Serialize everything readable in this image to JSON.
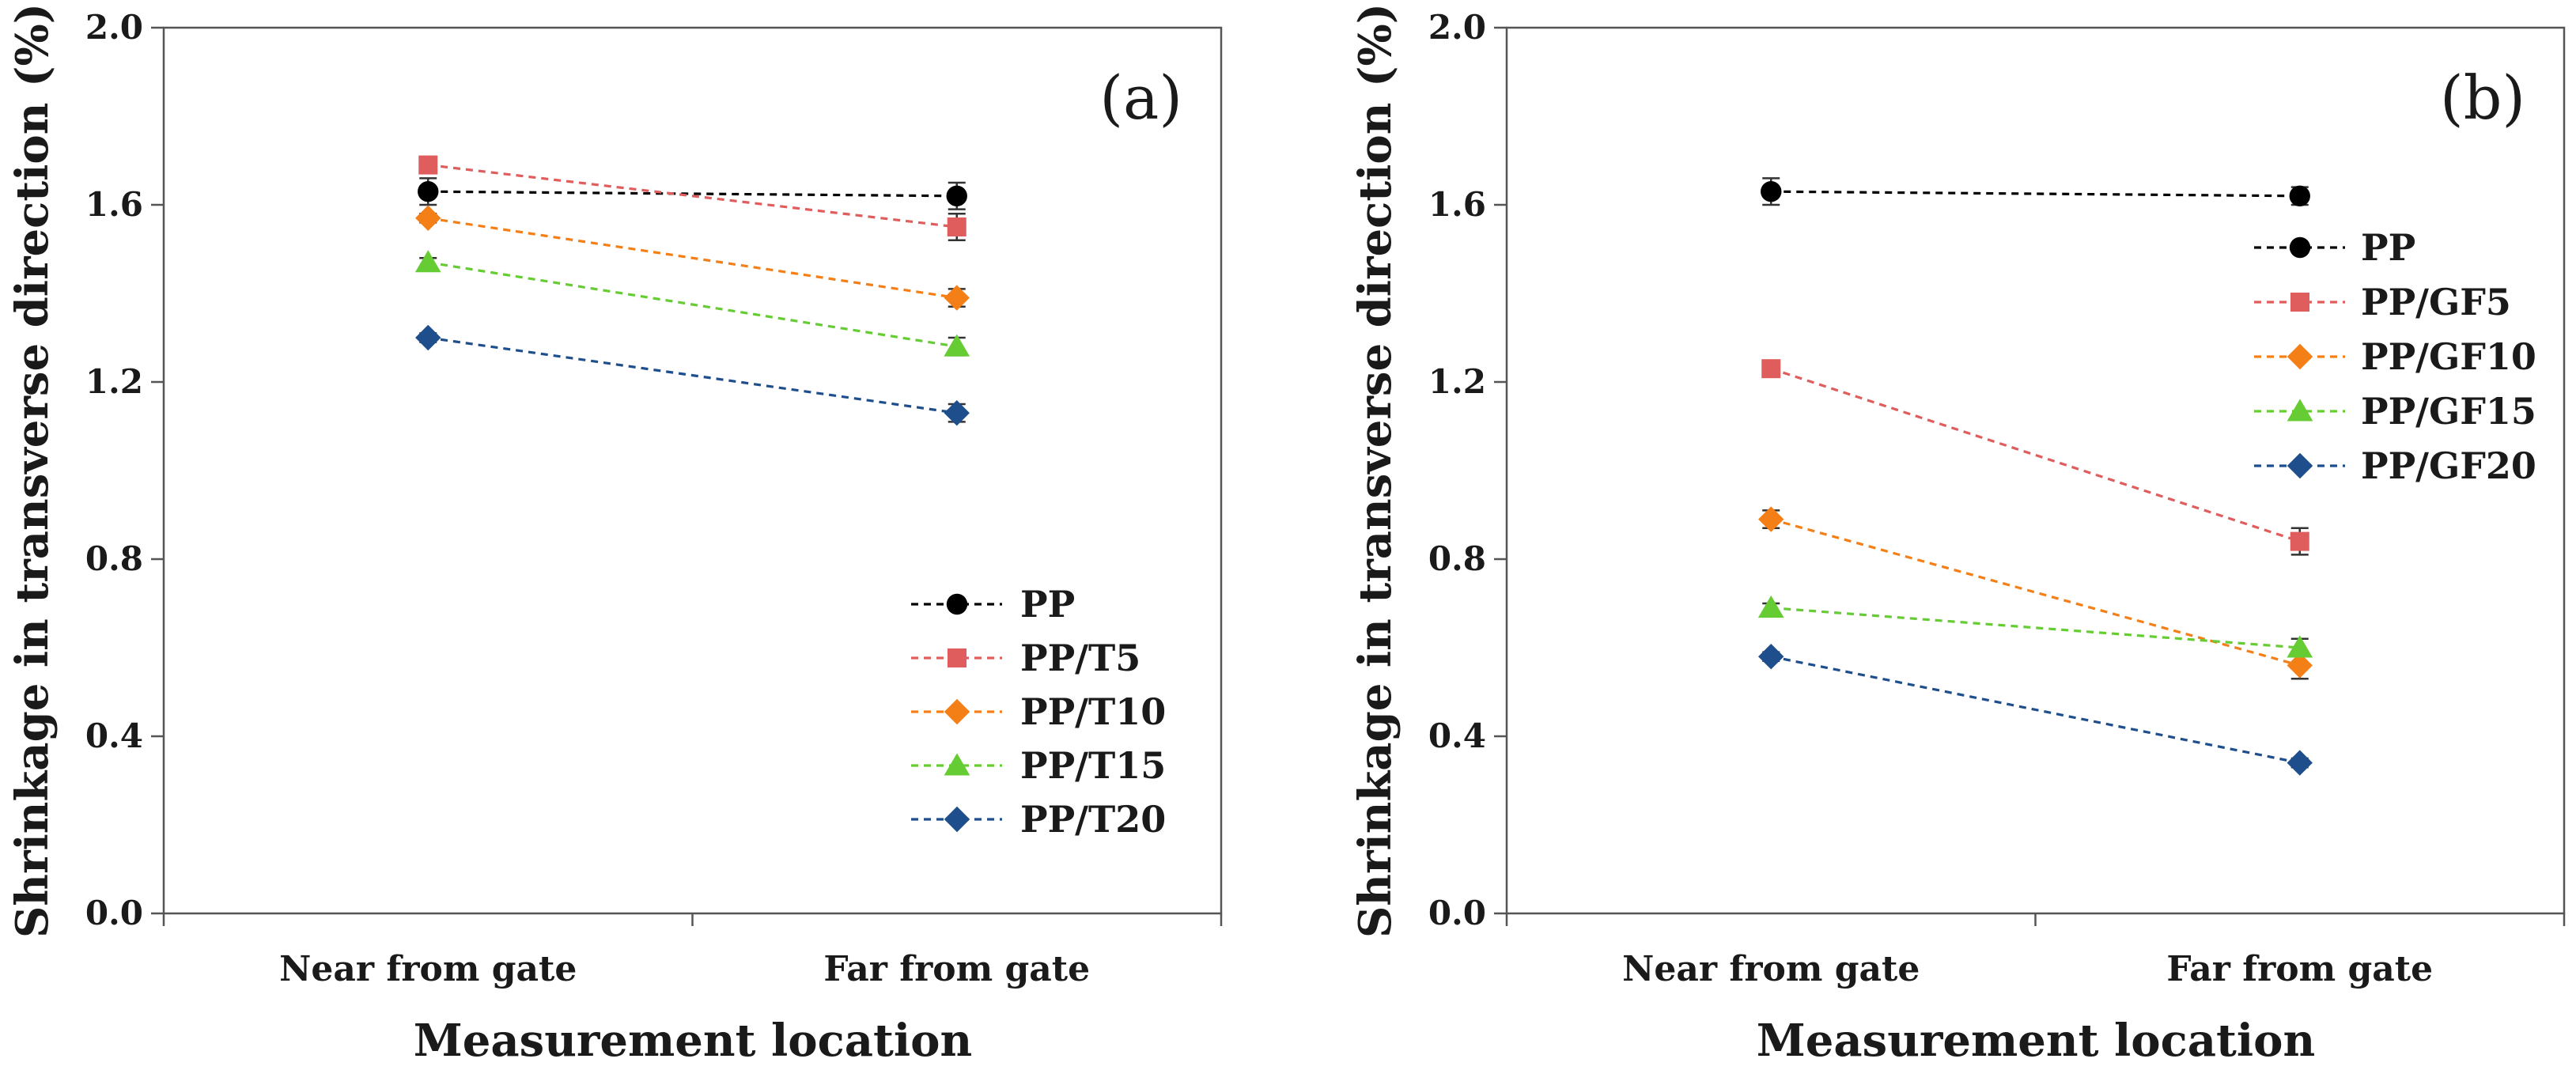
{
  "chart_data": [
    {
      "type": "line",
      "panel_label": "(a)",
      "xlabel": "Measurement location",
      "ylabel": "Shrinkage in transverse direction (%)",
      "categories": [
        "Near from gate",
        "Far from gate"
      ],
      "ylim": [
        0.0,
        2.0
      ],
      "yticks": [
        "0.0",
        "0.4",
        "0.8",
        "1.2",
        "1.6",
        "2.0"
      ],
      "legend_position": "bottom-right",
      "series": [
        {
          "name": "PP",
          "color": "#000000",
          "marker": "circle",
          "values": [
            1.63,
            1.62
          ],
          "errors": [
            0.03,
            0.03
          ]
        },
        {
          "name": "PP/T5",
          "color": "#e05d5d",
          "marker": "square",
          "values": [
            1.69,
            1.55
          ],
          "errors": [
            0.01,
            0.03
          ]
        },
        {
          "name": "PP/T10",
          "color": "#f57f17",
          "marker": "diamond",
          "values": [
            1.57,
            1.39
          ],
          "errors": [
            0.01,
            0.02
          ]
        },
        {
          "name": "PP/T15",
          "color": "#66cc33",
          "marker": "triangle",
          "values": [
            1.47,
            1.28
          ],
          "errors": [
            0.01,
            0.02
          ]
        },
        {
          "name": "PP/T20",
          "color": "#1f4e8c",
          "marker": "diamond",
          "values": [
            1.3,
            1.13
          ],
          "errors": [
            0.01,
            0.02
          ]
        }
      ]
    },
    {
      "type": "line",
      "panel_label": "(b)",
      "xlabel": "Measurement location",
      "ylabel": "Shrinkage in transverse direction (%)",
      "categories": [
        "Near from gate",
        "Far from gate"
      ],
      "ylim": [
        0.0,
        2.0
      ],
      "yticks": [
        "0.0",
        "0.4",
        "0.8",
        "1.2",
        "1.6",
        "2.0"
      ],
      "legend_position": "top-right",
      "series": [
        {
          "name": "PP",
          "color": "#000000",
          "marker": "circle",
          "values": [
            1.63,
            1.62
          ],
          "errors": [
            0.03,
            0.02
          ]
        },
        {
          "name": "PP/GF5",
          "color": "#e05d5d",
          "marker": "square",
          "values": [
            1.23,
            0.84
          ],
          "errors": [
            0.01,
            0.03
          ]
        },
        {
          "name": "PP/GF10",
          "color": "#f57f17",
          "marker": "diamond",
          "values": [
            0.89,
            0.56
          ],
          "errors": [
            0.02,
            0.03
          ]
        },
        {
          "name": "PP/GF15",
          "color": "#66cc33",
          "marker": "triangle",
          "values": [
            0.69,
            0.6
          ],
          "errors": [
            0.01,
            0.02
          ]
        },
        {
          "name": "PP/GF20",
          "color": "#1f4e8c",
          "marker": "diamond",
          "values": [
            0.58,
            0.34
          ],
          "errors": [
            0.01,
            0.01
          ]
        }
      ]
    }
  ]
}
